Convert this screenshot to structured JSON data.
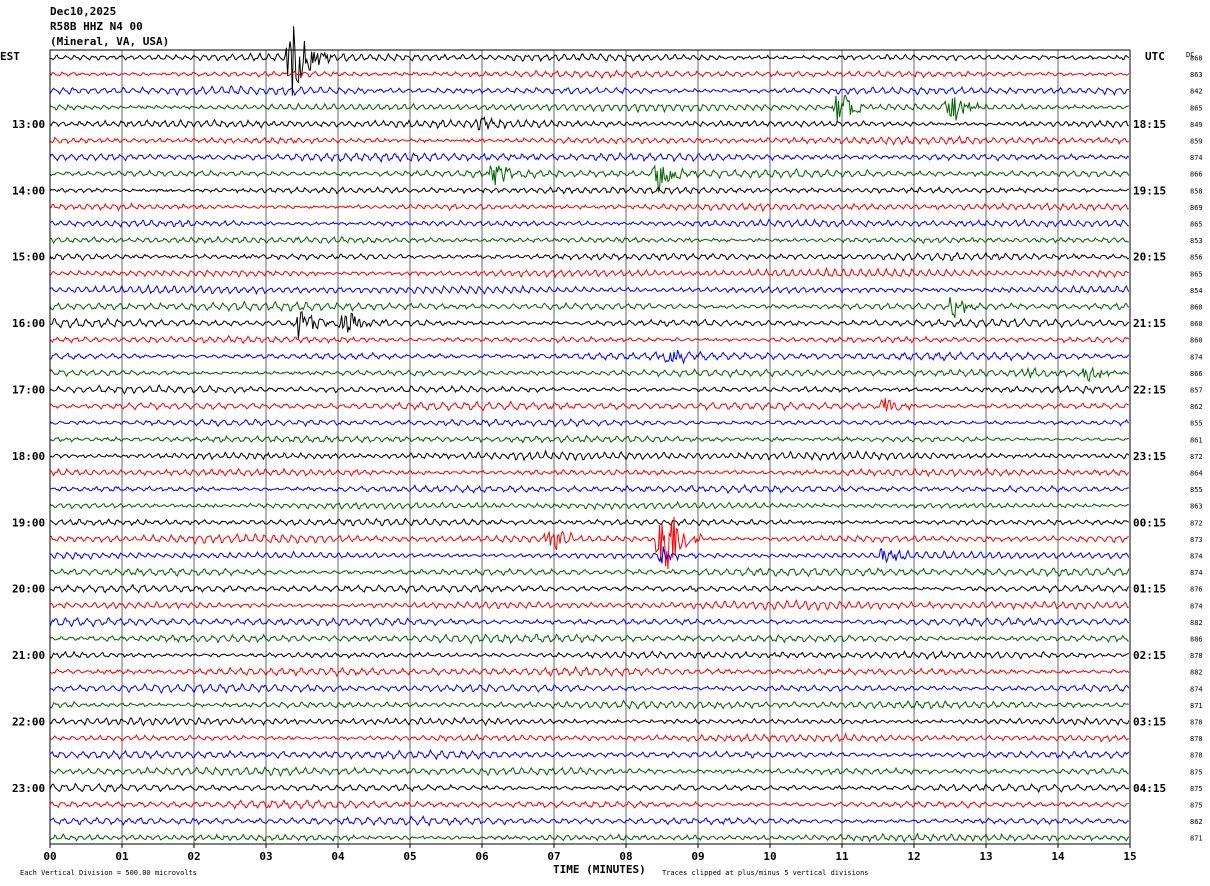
{
  "header": {
    "date": "Dec10,2025",
    "station": "R58B HHZ N4 00",
    "location": "(Mineral, VA, USA)"
  },
  "labels": {
    "left_tz": "EST",
    "right_tz": "UTC",
    "dc": "DC",
    "x_axis": "TIME (MINUTES)",
    "scale_note": "Each Vertical Division =  500.00 microvolts",
    "clip_note": "Traces clipped at plus/minus 5 vertical divisions"
  },
  "chart_data": {
    "type": "line",
    "title": "",
    "xlabel": "TIME (MINUTES)",
    "xlim": [
      0,
      15
    ],
    "x_ticks": [
      "00",
      "01",
      "02",
      "03",
      "04",
      "05",
      "06",
      "07",
      "08",
      "09",
      "10",
      "11",
      "12",
      "13",
      "14",
      "15"
    ],
    "trace_colors": [
      "#000000",
      "#ff0000",
      "#0000ff",
      "#006400"
    ],
    "trace_count": 48,
    "left_hour_labels": [
      "13:00",
      "14:00",
      "15:00",
      "16:00",
      "17:00",
      "18:00",
      "19:00",
      "20:00",
      "21:00",
      "22:00",
      "23:00"
    ],
    "right_time_labels": [
      "18:15",
      "19:15",
      "20:15",
      "21:15",
      "22:15",
      "23:15",
      "00:15",
      "01:15",
      "02:15",
      "03:15",
      "04:15"
    ],
    "dc_offsets": [
      "868",
      "863",
      "842",
      "865",
      "849",
      "859",
      "874",
      "866",
      "858",
      "869",
      "865",
      "853",
      "856",
      "865",
      "854",
      "860",
      "860",
      "860",
      "874",
      "866",
      "857",
      "862",
      "855",
      "861",
      "872",
      "864",
      "855",
      "863",
      "872",
      "873",
      "874",
      "874",
      "876",
      "874",
      "882",
      "886",
      "878",
      "882",
      "874",
      "871",
      "878",
      "870",
      "878",
      "875",
      "875",
      "875",
      "862",
      "871"
    ],
    "events": [
      {
        "trace": 0,
        "minute": 3.35,
        "amplitude": 2.6
      },
      {
        "trace": 3,
        "minute": 10.95,
        "amplitude": 1.1
      },
      {
        "trace": 3,
        "minute": 12.5,
        "amplitude": 1.0
      },
      {
        "trace": 4,
        "minute": 6.0,
        "amplitude": 0.5
      },
      {
        "trace": 7,
        "minute": 6.15,
        "amplitude": 0.9
      },
      {
        "trace": 7,
        "minute": 8.45,
        "amplitude": 1.0
      },
      {
        "trace": 16,
        "minute": 3.45,
        "amplitude": 1.0
      },
      {
        "trace": 16,
        "minute": 4.1,
        "amplitude": 0.8
      },
      {
        "trace": 15,
        "minute": 12.55,
        "amplitude": 0.7
      },
      {
        "trace": 18,
        "minute": 8.55,
        "amplitude": 0.6
      },
      {
        "trace": 21,
        "minute": 11.6,
        "amplitude": 0.6
      },
      {
        "trace": 29,
        "minute": 6.95,
        "amplitude": 0.8
      },
      {
        "trace": 29,
        "minute": 8.5,
        "amplitude": 3.5
      },
      {
        "trace": 30,
        "minute": 11.6,
        "amplitude": 0.5
      },
      {
        "trace": 30,
        "minute": 8.5,
        "amplitude": 0.6
      },
      {
        "trace": 19,
        "minute": 13.6,
        "amplitude": 0.5
      },
      {
        "trace": 19,
        "minute": 14.4,
        "amplitude": 0.6
      }
    ]
  }
}
